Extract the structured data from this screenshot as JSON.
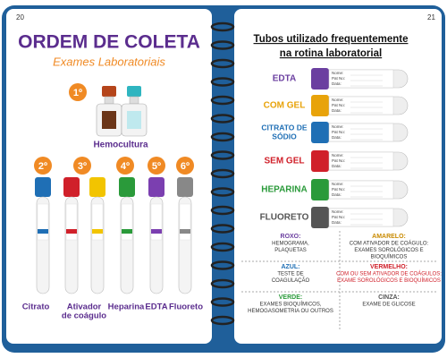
{
  "left_page": {
    "page_number": "20",
    "title": "ORDEM DE COLETA",
    "subtitle": "Exames Laboratoriais",
    "first": {
      "ordinal": "1º",
      "label": "Hemocultura"
    },
    "order": [
      {
        "ordinal": "2º",
        "label_lines": [
          "Citrato"
        ]
      },
      {
        "ordinal": "3º",
        "label_lines": [
          "Ativador",
          "de coágulo"
        ]
      },
      {
        "ordinal": "4º",
        "label_lines": [
          "Heparina"
        ]
      },
      {
        "ordinal": "5º",
        "label_lines": [
          "EDTA"
        ]
      },
      {
        "ordinal": "6º",
        "label_lines": [
          "Fluoreto"
        ]
      }
    ]
  },
  "right_page": {
    "page_number": "21",
    "title_lines": [
      "Tubos utilizado frequentemente",
      "na rotina laboratorial"
    ],
    "label_fields": [
      "Nome:",
      "Pat No:",
      "Data:"
    ],
    "tubes": [
      {
        "name_lines": [
          "EDTA"
        ],
        "color": "#6b3fa0"
      },
      {
        "name_lines": [
          "COM GEL"
        ],
        "color": "#e8a30a"
      },
      {
        "name_lines": [
          "CITRATO DE",
          "SÓDIO"
        ],
        "color": "#1f6fb5"
      },
      {
        "name_lines": [
          "SEM GEL"
        ],
        "color": "#d0202a"
      },
      {
        "name_lines": [
          "HEPARINA"
        ],
        "color": "#2a9a3a"
      },
      {
        "name_lines": [
          "FLUORETO"
        ],
        "color": "#555555"
      }
    ],
    "legend": [
      {
        "heading": "ROXO:",
        "color": "#6b3fa0",
        "lines": [
          "HEMOGRAMA,",
          "PLAQUETAS"
        ]
      },
      {
        "heading": "AMARELO:",
        "color": "#c98a00",
        "lines": [
          "COM ATIVADOR DE COÁGULO:",
          "EXAMES SOROLÓGICOS E",
          "BIOQUÍMICOS"
        ]
      },
      {
        "heading": "AZUL:",
        "color": "#1f6fb5",
        "lines": [
          "TESTE DE",
          "COAGULAÇÃO"
        ]
      },
      {
        "heading": "VERMELHO:",
        "color": "#d0202a",
        "lines": [
          "COM OU SEM ATIVADOR DE COÁGULOS:",
          "EXAME SOROLÓGICOS E BIOQUÍMICOS"
        ]
      },
      {
        "heading": "VERDE:",
        "color": "#2a9a3a",
        "lines": [
          "EXAMES BIOQUÍMICOS,",
          "HEMOGASOMETRIA OU OUTROS"
        ]
      },
      {
        "heading": "CINZA:",
        "color": "#555555",
        "lines": [
          "EXAME DE GLICOSE"
        ]
      }
    ]
  }
}
